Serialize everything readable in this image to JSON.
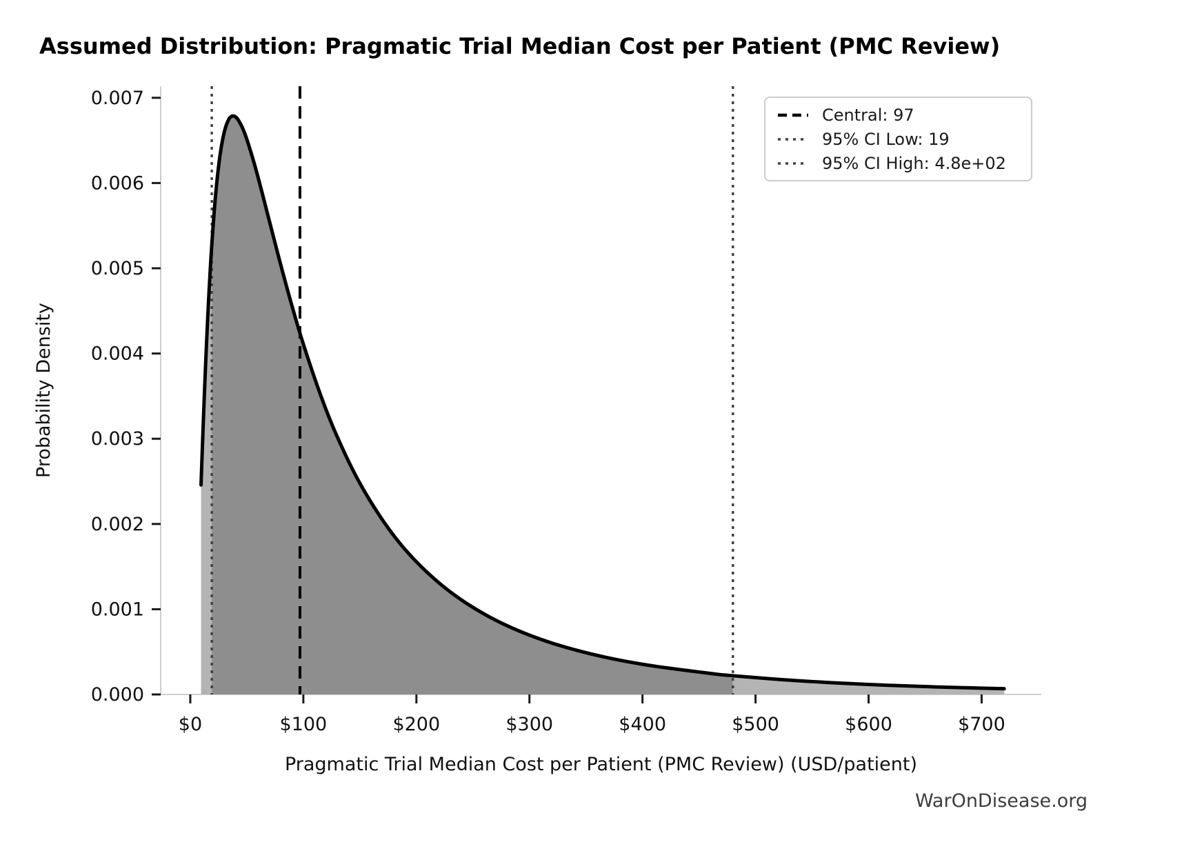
{
  "watermark": "WarOnDisease.org",
  "legend": {
    "items": [
      {
        "label": "Central: 97",
        "style": "dashed",
        "color": "#000000"
      },
      {
        "label": "95% CI Low: 19",
        "style": "dotted",
        "color": "#3f3f3f"
      },
      {
        "label": "95% CI High: 4.8e+02",
        "style": "dotted",
        "color": "#3f3f3f"
      }
    ]
  },
  "chart_data": {
    "type": "area",
    "title": "Assumed Distribution: Pragmatic Trial Median Cost per Patient (PMC Review)",
    "xlabel": "Pragmatic Trial Median Cost per Patient (PMC Review) (USD/patient)",
    "ylabel": "Probability Density",
    "grid": false,
    "legend_position": "upper right",
    "xlim": [
      -26.2,
      752.8
    ],
    "ylim": [
      0,
      0.007136
    ],
    "x_ticks": [
      {
        "v": 0,
        "label": "$0"
      },
      {
        "v": 100,
        "label": "$100"
      },
      {
        "v": 200,
        "label": "$200"
      },
      {
        "v": 300,
        "label": "$300"
      },
      {
        "v": 400,
        "label": "$400"
      },
      {
        "v": 500,
        "label": "$500"
      },
      {
        "v": 600,
        "label": "$600"
      },
      {
        "v": 700,
        "label": "$700"
      }
    ],
    "y_ticks": [
      {
        "v": 0.0,
        "label": "0.000"
      },
      {
        "v": 0.001,
        "label": "0.001"
      },
      {
        "v": 0.002,
        "label": "0.002"
      },
      {
        "v": 0.003,
        "label": "0.003"
      },
      {
        "v": 0.004,
        "label": "0.004"
      },
      {
        "v": 0.005,
        "label": "0.005"
      },
      {
        "v": 0.006,
        "label": "0.006"
      },
      {
        "v": 0.007,
        "label": "0.007"
      }
    ],
    "distribution": {
      "family": "lognormal",
      "central_median": 97,
      "ci95_low": 19,
      "ci95_high": 480,
      "sigma_log": 0.97,
      "x_start": 9.5,
      "x_end": 720,
      "peak": {
        "x": 38,
        "density": 0.00679
      }
    },
    "vlines": [
      {
        "name": "central",
        "value": 97,
        "label": "Central: 97",
        "style": "dashed",
        "color": "#000000"
      },
      {
        "name": "ci-low",
        "value": 19,
        "label": "95% CI Low: 19",
        "style": "dotted",
        "color": "#3f3f3f"
      },
      {
        "name": "ci-high",
        "value": 480,
        "label": "95% CI High: 4.8e+02",
        "style": "dotted",
        "color": "#3f3f3f"
      }
    ],
    "fill_regions": [
      {
        "from": 9.5,
        "to": 19,
        "color": "#b4b4b4"
      },
      {
        "from": 19,
        "to": 480,
        "color": "#8e8e8e"
      },
      {
        "from": 480,
        "to": 720,
        "color": "#b4b4b4"
      }
    ],
    "curve_color": "#000000",
    "spine_color": "#cfcfcf",
    "tick_color": "#1a1a1a",
    "text_color": "#111111",
    "watermark_color": "#3d3d3d",
    "series": [
      {
        "name": "pdf",
        "points": [
          [
            9.5,
            0.002458
          ],
          [
            11,
            0.003013
          ],
          [
            13,
            0.003698
          ],
          [
            15,
            0.004303
          ],
          [
            17,
            0.004828
          ],
          [
            19,
            0.005272
          ],
          [
            22,
            0.005803
          ],
          [
            25,
            0.006193
          ],
          [
            28,
            0.006467
          ],
          [
            31,
            0.006645
          ],
          [
            34,
            0.006746
          ],
          [
            36,
            0.006778
          ],
          [
            38,
            0.006787
          ],
          [
            40,
            0.006776
          ],
          [
            42,
            0.006748
          ],
          [
            46,
            0.006652
          ],
          [
            50,
            0.006513
          ],
          [
            56,
            0.006256
          ],
          [
            62,
            0.005964
          ],
          [
            70,
            0.005552
          ],
          [
            80,
            0.005041
          ],
          [
            90,
            0.004556
          ],
          [
            100,
            0.004111
          ],
          [
            115,
            0.003522
          ],
          [
            130,
            0.003023
          ],
          [
            150,
            0.002478
          ],
          [
            175,
            0.001953
          ],
          [
            200,
            0.001557
          ],
          [
            230,
            0.001203
          ],
          [
            265,
            0.000907
          ],
          [
            305,
            0.000671
          ],
          [
            350,
            0.00049
          ],
          [
            400,
            0.000354
          ],
          [
            460,
            0.000247
          ],
          [
            480,
            0.00022
          ],
          [
            530,
            0.000168
          ],
          [
            590,
            0.000123
          ],
          [
            660,
            8.83e-05
          ],
          [
            720,
            6.75e-05
          ]
        ]
      }
    ]
  }
}
